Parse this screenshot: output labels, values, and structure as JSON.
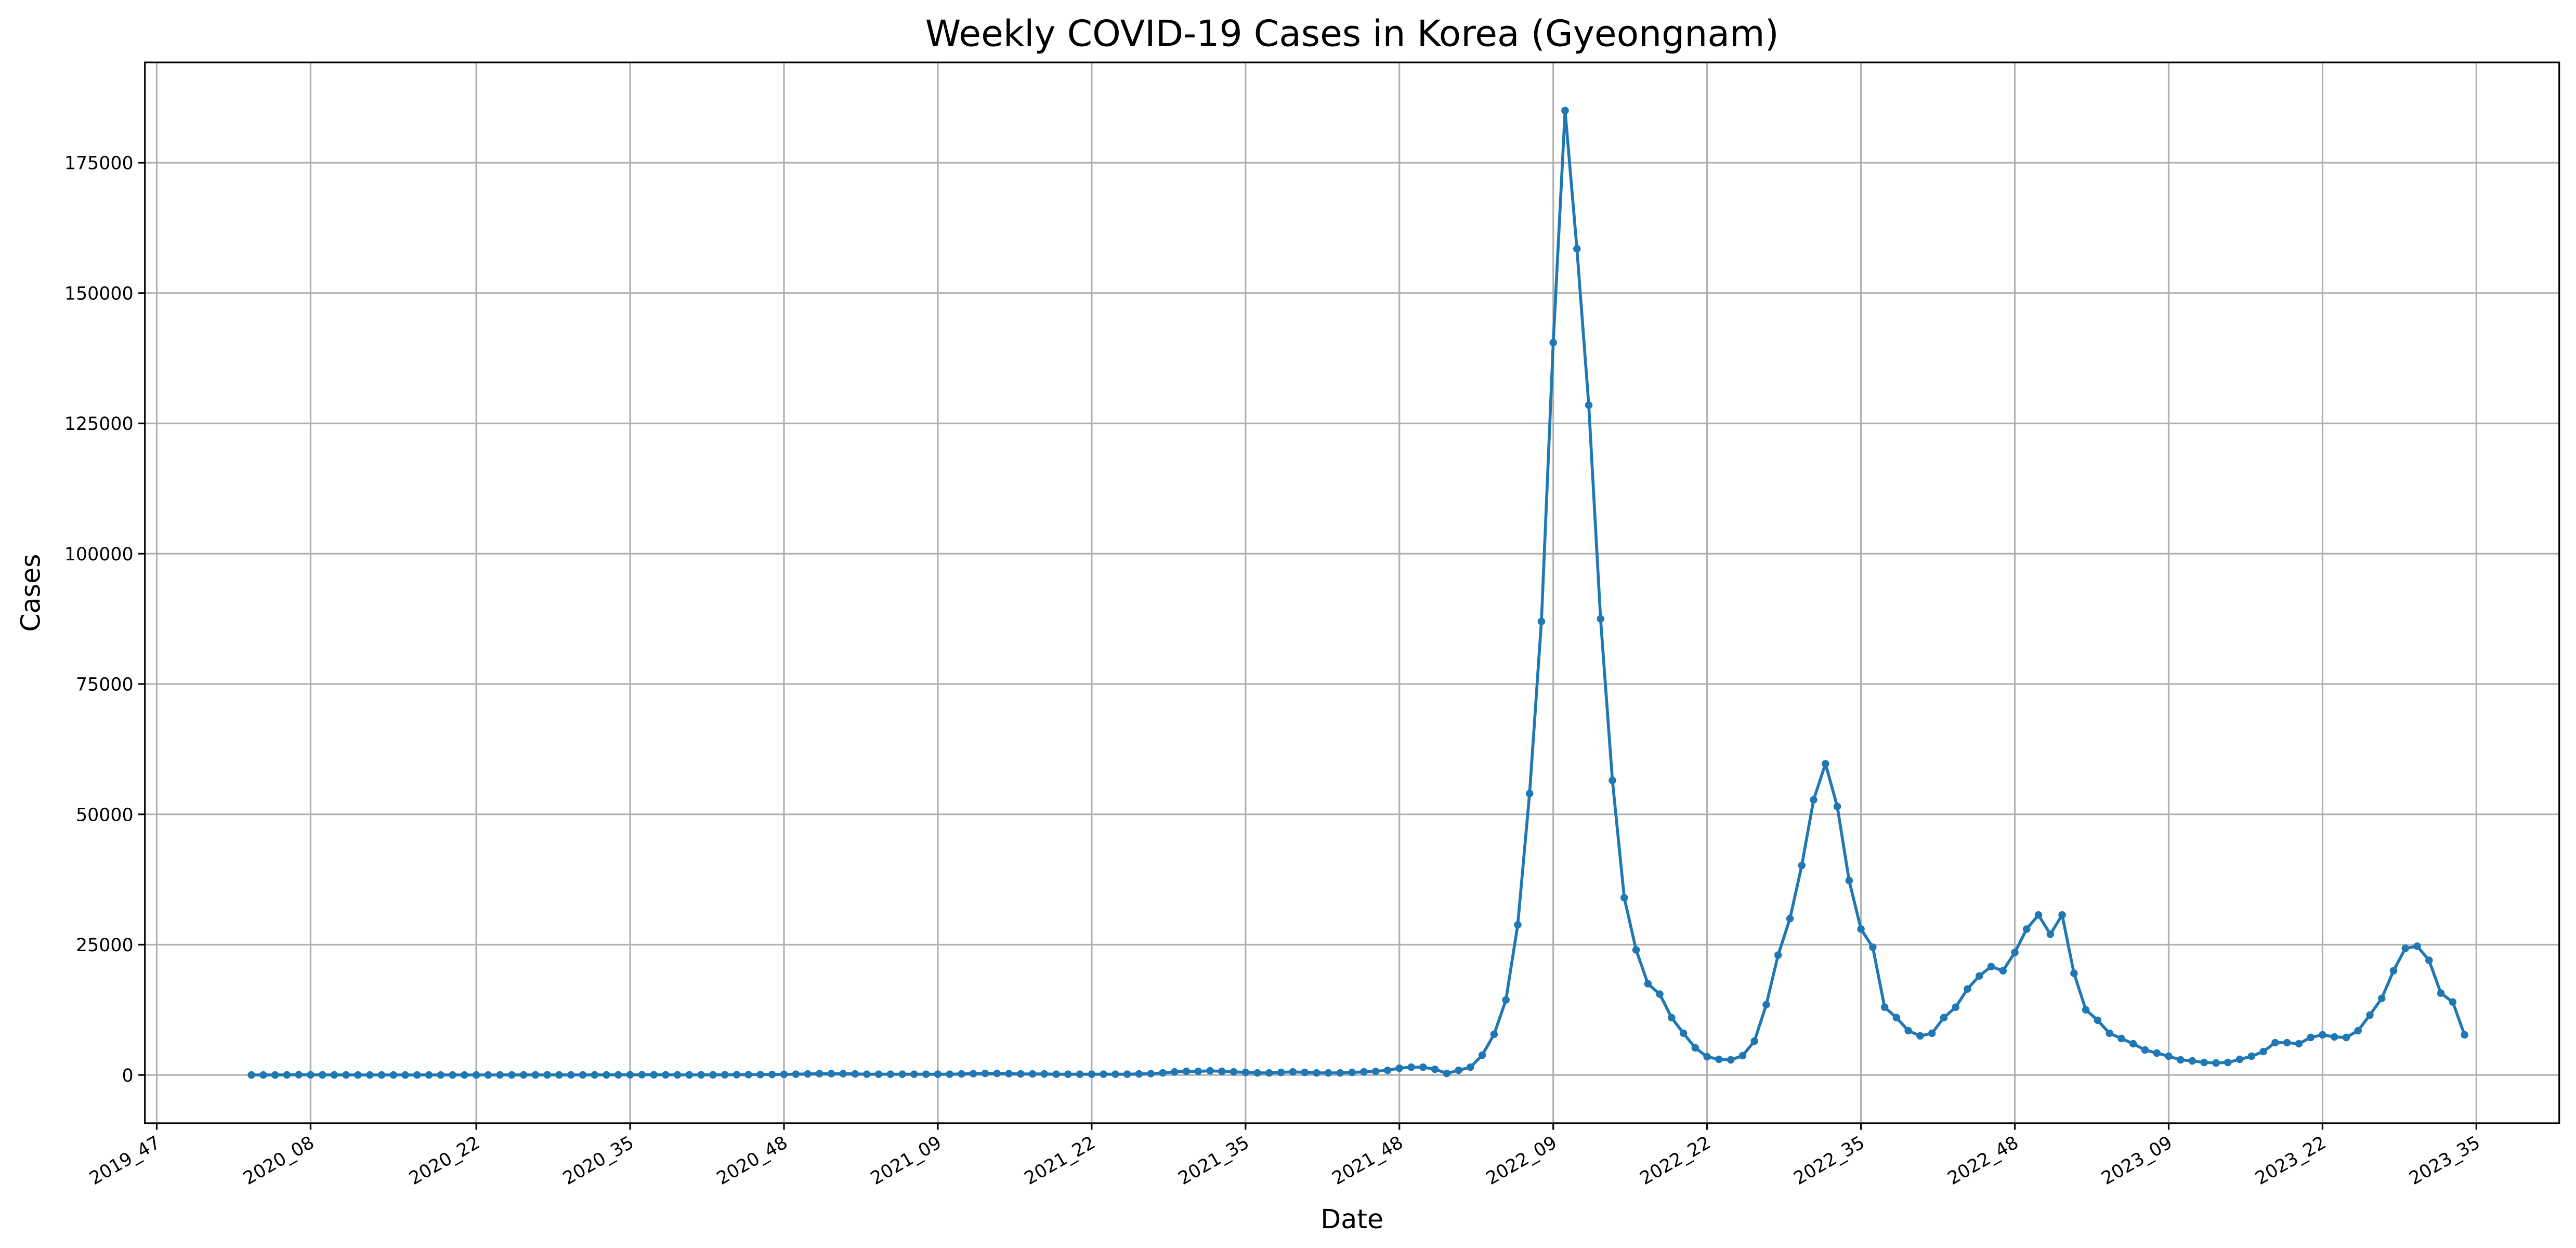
{
  "chart_data": {
    "type": "line",
    "title": "Weekly COVID-19 Cases in Korea (Gyeongnam)",
    "xlabel": "Date",
    "ylabel": "Cases",
    "color": "#1f77b4",
    "grid": true,
    "xlim": [
      "2019_46",
      "2023_42"
    ],
    "xticks": [
      "2019_47",
      "2020_08",
      "2020_22",
      "2020_35",
      "2020_48",
      "2021_09",
      "2021_22",
      "2021_35",
      "2021_48",
      "2022_09",
      "2022_22",
      "2022_35",
      "2022_48",
      "2023_09",
      "2023_22",
      "2023_35"
    ],
    "ylim": [
      -9250,
      194250
    ],
    "yticks": [
      0,
      25000,
      50000,
      75000,
      100000,
      125000,
      150000,
      175000
    ],
    "x": [
      "2020_03",
      "2020_04",
      "2020_05",
      "2020_06",
      "2020_07",
      "2020_08",
      "2020_09",
      "2020_10",
      "2020_11",
      "2020_12",
      "2020_13",
      "2020_14",
      "2020_15",
      "2020_16",
      "2020_17",
      "2020_18",
      "2020_19",
      "2020_20",
      "2020_21",
      "2020_22",
      "2020_23",
      "2020_24",
      "2020_25",
      "2020_26",
      "2020_27",
      "2020_28",
      "2020_29",
      "2020_30",
      "2020_31",
      "2020_32",
      "2020_33",
      "2020_34",
      "2020_35",
      "2020_36",
      "2020_37",
      "2020_38",
      "2020_39",
      "2020_40",
      "2020_41",
      "2020_42",
      "2020_43",
      "2020_44",
      "2020_45",
      "2020_46",
      "2020_47",
      "2020_48",
      "2020_49",
      "2020_50",
      "2020_51",
      "2020_52",
      "2021_01",
      "2021_02",
      "2021_03",
      "2021_04",
      "2021_05",
      "2021_06",
      "2021_07",
      "2021_08",
      "2021_09",
      "2021_10",
      "2021_11",
      "2021_12",
      "2021_13",
      "2021_14",
      "2021_15",
      "2021_16",
      "2021_17",
      "2021_18",
      "2021_19",
      "2021_20",
      "2021_21",
      "2021_22",
      "2021_23",
      "2021_24",
      "2021_25",
      "2021_26",
      "2021_27",
      "2021_28",
      "2021_29",
      "2021_30",
      "2021_31",
      "2021_32",
      "2021_33",
      "2021_34",
      "2021_35",
      "2021_36",
      "2021_37",
      "2021_38",
      "2021_39",
      "2021_40",
      "2021_41",
      "2021_42",
      "2021_43",
      "2021_44",
      "2021_45",
      "2021_46",
      "2021_47",
      "2021_48",
      "2021_49",
      "2021_50",
      "2021_51",
      "2021_52",
      "2022_01",
      "2022_02",
      "2022_03",
      "2022_04",
      "2022_05",
      "2022_06",
      "2022_07",
      "2022_08",
      "2022_09",
      "2022_10",
      "2022_11",
      "2022_12",
      "2022_13",
      "2022_14",
      "2022_15",
      "2022_16",
      "2022_17",
      "2022_18",
      "2022_19",
      "2022_20",
      "2022_21",
      "2022_22",
      "2022_23",
      "2022_24",
      "2022_25",
      "2022_26",
      "2022_27",
      "2022_28",
      "2022_29",
      "2022_30",
      "2022_31",
      "2022_32",
      "2022_33",
      "2022_34",
      "2022_35",
      "2022_36",
      "2022_37",
      "2022_38",
      "2022_39",
      "2022_40",
      "2022_41",
      "2022_42",
      "2022_43",
      "2022_44",
      "2022_45",
      "2022_46",
      "2022_47",
      "2022_48",
      "2022_49",
      "2022_50",
      "2022_51",
      "2022_52",
      "2023_01",
      "2023_02",
      "2023_03",
      "2023_04",
      "2023_05",
      "2023_06",
      "2023_07",
      "2023_08",
      "2023_09",
      "2023_10",
      "2023_11",
      "2023_12",
      "2023_13",
      "2023_14",
      "2023_15",
      "2023_16",
      "2023_17",
      "2023_18",
      "2023_19",
      "2023_20",
      "2023_21",
      "2023_22",
      "2023_23",
      "2023_24",
      "2023_25",
      "2023_26",
      "2023_27",
      "2023_28",
      "2023_29",
      "2023_30",
      "2023_31",
      "2023_32",
      "2023_33",
      "2023_34"
    ],
    "values": [
      0,
      0,
      0,
      10,
      50,
      30,
      20,
      10,
      10,
      5,
      5,
      5,
      5,
      5,
      5,
      5,
      5,
      5,
      5,
      5,
      5,
      10,
      10,
      10,
      20,
      20,
      15,
      10,
      10,
      20,
      20,
      30,
      40,
      50,
      40,
      30,
      20,
      20,
      20,
      30,
      40,
      50,
      60,
      80,
      100,
      120,
      150,
      200,
      250,
      250,
      250,
      200,
      150,
      150,
      150,
      150,
      150,
      150,
      150,
      150,
      200,
      250,
      300,
      300,
      250,
      200,
      200,
      200,
      150,
      150,
      150,
      150,
      150,
      150,
      150,
      200,
      250,
      400,
      600,
      700,
      700,
      800,
      700,
      600,
      500,
      400,
      400,
      500,
      600,
      500,
      400,
      400,
      400,
      500,
      600,
      700,
      900,
      1300,
      1500,
      1500,
      1100,
      300,
      900,
      1500,
      3800,
      7800,
      14400,
      28800,
      54000,
      87000,
      140500,
      185000,
      158500,
      128500,
      87500,
      56500,
      34000,
      24000,
      17500,
      15500,
      11000,
      8000,
      5200,
      3500,
      3000,
      2900,
      3700,
      6500,
      13500,
      23000,
      30000,
      40200,
      52800,
      59700,
      51500,
      37300,
      28000,
      24500,
      13000,
      11000,
      8500,
      7500,
      8000,
      11000,
      13000,
      16500,
      19000,
      20800,
      20000,
      23500,
      28000,
      30700,
      27000,
      30700,
      19500,
      12500,
      10500,
      8000,
      7000,
      6000,
      4800,
      4200,
      3600,
      2900,
      2700,
      2400,
      2300,
      2400,
      3000,
      3600,
      4500,
      6200,
      6200,
      6000,
      7200,
      7700,
      7300,
      7200,
      8500,
      11500,
      14700,
      20000,
      24300,
      24700,
      22000,
      15700,
      14000,
      7700
    ]
  }
}
